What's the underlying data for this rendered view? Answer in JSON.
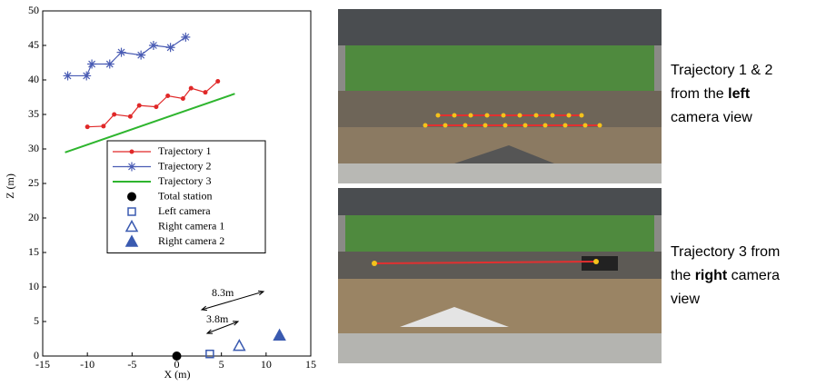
{
  "chart_data": {
    "type": "scatter",
    "x_label": "X (m)",
    "y_label": "Z (m)",
    "xlim": [
      -15,
      15
    ],
    "xticks": [
      -15,
      -10,
      -5,
      0,
      5,
      10,
      15
    ],
    "ylim": [
      0,
      50
    ],
    "yticks": [
      0,
      5,
      10,
      15,
      20,
      25,
      30,
      35,
      40,
      45,
      50
    ],
    "grid": false,
    "series": [
      {
        "name": "Trajectory 1",
        "color": "#e02828",
        "marker": "dot",
        "line": true,
        "x": [
          -10,
          -8.2,
          -7,
          -5.2,
          -4.2,
          -2.3,
          -1,
          0.7,
          1.6,
          3.2,
          4.6
        ],
        "values": [
          33.2,
          33.3,
          35,
          34.7,
          36.3,
          36.1,
          37.7,
          37.3,
          38.8,
          38.2,
          39.8
        ]
      },
      {
        "name": "Trajectory 2",
        "color": "#4a5cb4",
        "marker": "star",
        "line": true,
        "x": [
          -12.2,
          -10.1,
          -9.5,
          -7.5,
          -6.2,
          -4,
          -2.6,
          -0.7,
          1
        ],
        "values": [
          40.6,
          40.6,
          42.3,
          42.3,
          44,
          43.6,
          45,
          44.7,
          46.2
        ]
      },
      {
        "name": "Trajectory 3",
        "color": "#2eb52e",
        "marker": "none",
        "line": true,
        "x": [
          -12.5,
          6.5
        ],
        "values": [
          29.5,
          38
        ]
      },
      {
        "name": "Total station",
        "color": "#000000",
        "marker": "big-dot",
        "line": false,
        "x": [
          0
        ],
        "values": [
          0
        ]
      },
      {
        "name": "Left camera",
        "color": "#3a5ab0",
        "marker": "square",
        "line": false,
        "x": [
          3.7
        ],
        "values": [
          0.3
        ]
      },
      {
        "name": "Right camera 1",
        "color": "#3a5ab0",
        "marker": "triangle",
        "line": false,
        "x": [
          7
        ],
        "values": [
          1.5
        ]
      },
      {
        "name": "Right camera 2",
        "color": "#3a5ab0",
        "marker": "triangle-filled",
        "line": false,
        "x": [
          11.5
        ],
        "values": [
          3
        ]
      }
    ],
    "annotations": [
      "8.3m",
      "3.8m"
    ]
  },
  "captions": [
    {
      "parts": [
        "Trajectory 1 & 2",
        "from the ",
        "left",
        "camera view"
      ]
    },
    {
      "parts": [
        "Trajectory 3 from",
        "the ",
        "right",
        " camera",
        "view"
      ]
    }
  ]
}
